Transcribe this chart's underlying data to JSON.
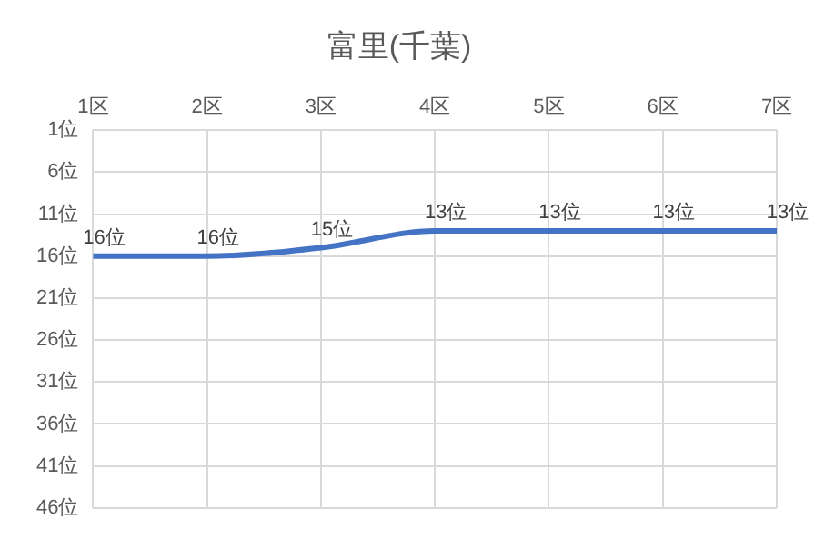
{
  "chart_data": {
    "type": "line",
    "title": "富里(千葉)",
    "categories": [
      "1区",
      "2区",
      "3区",
      "4区",
      "5区",
      "6区",
      "7区"
    ],
    "series": [
      {
        "color": "#4472c4",
        "values": [
          16,
          16,
          15,
          13,
          13,
          13,
          13
        ],
        "value_labels": [
          "16位",
          "16位",
          "15位",
          "13位",
          "13位",
          "13位",
          "13位"
        ]
      }
    ],
    "ylim": [
      46,
      1
    ],
    "yticks": [
      {
        "value": 1,
        "label": "1位"
      },
      {
        "value": 6,
        "label": "6位"
      },
      {
        "value": 11,
        "label": "11位"
      },
      {
        "value": 16,
        "label": "16位"
      },
      {
        "value": 21,
        "label": "21位"
      },
      {
        "value": 26,
        "label": "26位"
      },
      {
        "value": 31,
        "label": "31位"
      },
      {
        "value": 36,
        "label": "36位"
      },
      {
        "value": 41,
        "label": "41位"
      },
      {
        "value": 46,
        "label": "46位"
      }
    ],
    "grid": true,
    "legend": false,
    "marker": "none",
    "line_style": "solid"
  }
}
